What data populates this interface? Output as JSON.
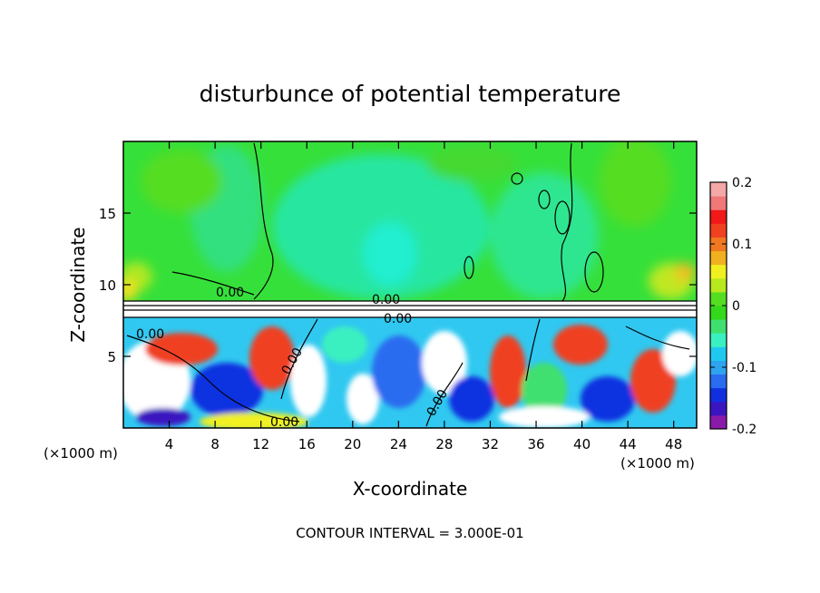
{
  "chart_data": {
    "type": "heatmap",
    "title": "disturbunce of potential temperature",
    "xlabel": "X-coordinate",
    "ylabel": "Z-coordinate",
    "x_unit": "(×1000 m)",
    "x_unit_right": "(×1000 m)",
    "x_ticks": [
      "4",
      "8",
      "12",
      "16",
      "20",
      "24",
      "28",
      "32",
      "36",
      "40",
      "44",
      "48"
    ],
    "y_ticks": [
      "5",
      "10",
      "15"
    ],
    "xlim": [
      0,
      50
    ],
    "ylim": [
      0,
      20
    ],
    "footer": "CONTOUR INTERVAL = 3.000E-01",
    "contour_labels": [
      "0.00",
      "0.00",
      "0.00",
      "0.00",
      "0.00",
      "0.00",
      "0.00"
    ],
    "colorbar": {
      "range": [
        -0.2,
        0.2
      ],
      "ticks": [
        "0.2",
        "0.1",
        "0",
        "-0.1",
        "-0.2"
      ],
      "colors": [
        "#8a1aa8",
        "#3a16c0",
        "#1030e0",
        "#2a6cf0",
        "#2ea4f0",
        "#20c8f0",
        "#3af0c0",
        "#40e070",
        "#33d91a",
        "#55dd22",
        "#b8e81e",
        "#f0f020",
        "#f0b020",
        "#f07820",
        "#f04020",
        "#f01818",
        "#f07878",
        "#f4a8a8"
      ]
    }
  }
}
